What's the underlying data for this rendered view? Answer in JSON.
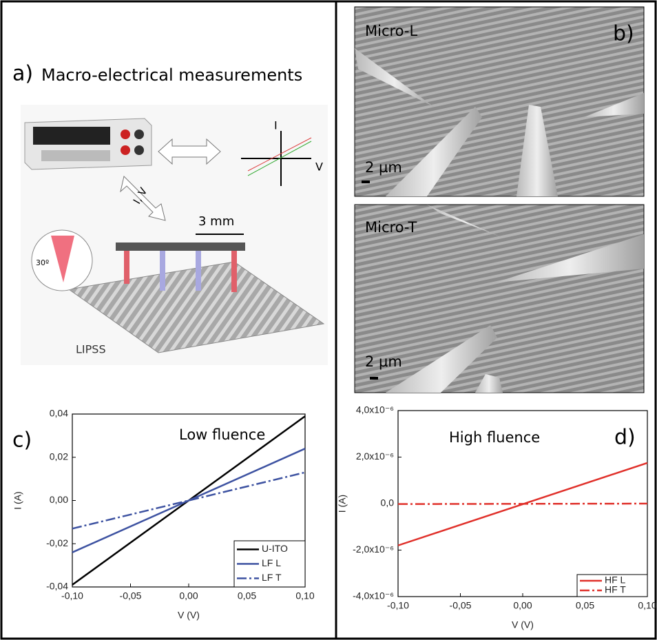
{
  "panels": {
    "a_label": "a)",
    "a_title": "Macro-electrical measurements",
    "axis_i": "I",
    "axis_v": "V",
    "cable": "I, V",
    "distance": "3 mm",
    "angle": "30º",
    "sample": "LIPSS",
    "b_label": "b)",
    "image1_title": "Micro-L",
    "image1_scale": "2 µm",
    "image2_title": "Micro-T",
    "image2_scale": "2 µm"
  },
  "chart_data": [
    {
      "type": "line",
      "panel_label": "c)",
      "annotation": "Low fluence",
      "x_label": "V (V)",
      "y_label": "I (A)",
      "xlim": [
        -0.1,
        0.1
      ],
      "ylim": [
        -0.04,
        0.04
      ],
      "xticks": [
        {
          "value": -0.1,
          "label": "-0,10"
        },
        {
          "value": -0.05,
          "label": "-0,05"
        },
        {
          "value": 0,
          "label": "0,00"
        },
        {
          "value": 0.05,
          "label": "0,05"
        },
        {
          "value": 0.1,
          "label": "0,10"
        }
      ],
      "yticks": [
        {
          "value": -0.04,
          "label": "-0,04"
        },
        {
          "value": -0.02,
          "label": "-0,02"
        },
        {
          "value": 0,
          "label": "0,00"
        },
        {
          "value": 0.02,
          "label": "0,02"
        },
        {
          "value": 0.04,
          "label": "0,04"
        }
      ],
      "legend": "lower right",
      "series": [
        {
          "name": "U-ITO",
          "color": "#000000",
          "style": "solid",
          "x": [
            -0.1,
            0.1
          ],
          "values": [
            -0.039,
            0.039
          ]
        },
        {
          "name": "LF L",
          "color": "#3d52a1",
          "style": "solid",
          "x": [
            -0.1,
            0.1
          ],
          "values": [
            -0.024,
            0.024
          ]
        },
        {
          "name": "LF T",
          "color": "#3d52a1",
          "style": "dashdot",
          "x": [
            -0.1,
            0.1
          ],
          "values": [
            -0.013,
            0.013
          ]
        }
      ]
    },
    {
      "type": "line",
      "panel_label": "d)",
      "annotation": "High fluence",
      "x_label": "V (V)",
      "y_label": "I (A)",
      "xlim": [
        -0.1,
        0.1
      ],
      "ylim": [
        -4e-06,
        4e-06
      ],
      "xticks": [
        {
          "value": -0.1,
          "label": "-0,10"
        },
        {
          "value": -0.05,
          "label": "-0,05"
        },
        {
          "value": 0,
          "label": "0,00"
        },
        {
          "value": 0.05,
          "label": "0,05"
        },
        {
          "value": 0.1,
          "label": "0,10"
        }
      ],
      "yticks": [
        {
          "value": -4e-06,
          "label": "-4,0x10⁻⁶"
        },
        {
          "value": -2e-06,
          "label": "-2,0x10⁻⁶"
        },
        {
          "value": 0,
          "label": "0,0"
        },
        {
          "value": 2e-06,
          "label": "2,0x10⁻⁶"
        },
        {
          "value": 4e-06,
          "label": "4,0x10⁻⁶"
        }
      ],
      "legend": "lower right",
      "series": [
        {
          "name": "HF L",
          "color": "#e0302a",
          "style": "solid",
          "x": [
            -0.1,
            0.1
          ],
          "values": [
            -1.8e-06,
            1.75e-06
          ]
        },
        {
          "name": "HF T",
          "color": "#e0302a",
          "style": "dashdot",
          "x": [
            -0.1,
            0.1
          ],
          "values": [
            -2e-08,
            0
          ]
        }
      ]
    }
  ]
}
